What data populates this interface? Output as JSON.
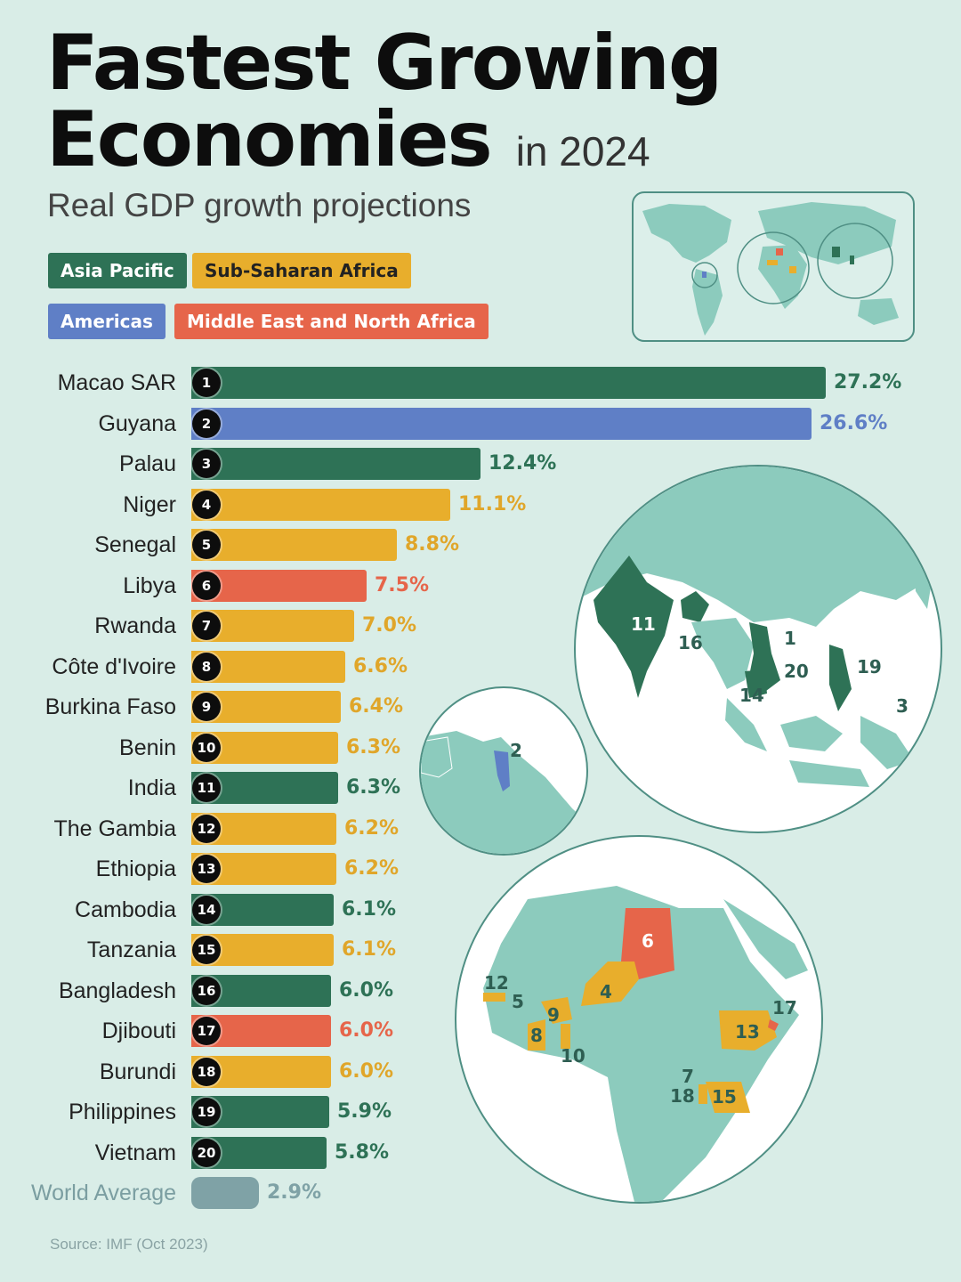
{
  "title": {
    "line1": "Fastest Growing",
    "line2": "Economies",
    "suffix": "in 2024",
    "subtitle": "Real GDP growth projections"
  },
  "legend": [
    {
      "label": "Asia Pacific",
      "color": "#2e7256"
    },
    {
      "label": "Sub-Saharan Africa",
      "color": "#e8ae2c"
    },
    {
      "label": "Americas",
      "color": "#5f7fc6"
    },
    {
      "label": "Middle East and North Africa",
      "color": "#e6654a"
    }
  ],
  "chart_data": {
    "type": "bar",
    "orientation": "horizontal",
    "categories": [
      "Macao SAR",
      "Guyana",
      "Palau",
      "Niger",
      "Senegal",
      "Libya",
      "Rwanda",
      "Côte d'Ivoire",
      "Burkina Faso",
      "Benin",
      "India",
      "The Gambia",
      "Ethiopia",
      "Cambodia",
      "Tanzania",
      "Bangladesh",
      "Djibouti",
      "Burundi",
      "Philippines",
      "Vietnam"
    ],
    "values": [
      27.2,
      26.6,
      12.4,
      11.1,
      8.8,
      7.5,
      7.0,
      6.6,
      6.4,
      6.3,
      6.3,
      6.2,
      6.2,
      6.1,
      6.1,
      6.0,
      6.0,
      6.0,
      5.9,
      5.8
    ],
    "value_labels": [
      "27.2%",
      "26.6%",
      "12.4%",
      "11.1%",
      "8.8%",
      "7.5%",
      "7.0%",
      "6.6%",
      "6.4%",
      "6.3%",
      "6.3%",
      "6.2%",
      "6.2%",
      "6.1%",
      "6.1%",
      "6.0%",
      "6.0%",
      "6.0%",
      "5.9%",
      "5.8%"
    ],
    "ranks": [
      "1",
      "2",
      "3",
      "4",
      "5",
      "6",
      "7",
      "8",
      "9",
      "10",
      "11",
      "12",
      "13",
      "14",
      "15",
      "16",
      "17",
      "18",
      "19",
      "20"
    ],
    "regions": [
      "Asia Pacific",
      "Americas",
      "Asia Pacific",
      "Sub-Saharan Africa",
      "Sub-Saharan Africa",
      "Middle East and North Africa",
      "Sub-Saharan Africa",
      "Sub-Saharan Africa",
      "Sub-Saharan Africa",
      "Sub-Saharan Africa",
      "Asia Pacific",
      "Sub-Saharan Africa",
      "Sub-Saharan Africa",
      "Asia Pacific",
      "Sub-Saharan Africa",
      "Asia Pacific",
      "Middle East and North Africa",
      "Sub-Saharan Africa",
      "Asia Pacific",
      "Asia Pacific"
    ],
    "reference": {
      "label": "World Average",
      "value": 2.9,
      "value_label": "2.9%",
      "color": "#7fa2a6"
    },
    "region_colors": {
      "Asia Pacific": "#2e7256",
      "Sub-Saharan Africa": "#e8ae2c",
      "Americas": "#5f7fc6",
      "Middle East and North Africa": "#e6654a"
    },
    "value_label_colors": {
      "Asia Pacific": "#2e7256",
      "Sub-Saharan Africa": "#e0a62a",
      "Americas": "#5f7fc6",
      "Middle East and North Africa": "#e6654a"
    }
  },
  "maps": {
    "asia_labels": [
      "11",
      "16",
      "1",
      "20",
      "19",
      "14",
      "3"
    ],
    "americas_labels": [
      "2"
    ],
    "africa_labels": [
      "6",
      "12",
      "5",
      "4",
      "9",
      "8",
      "10",
      "17",
      "13",
      "7",
      "18",
      "15"
    ]
  },
  "source": "Source: IMF (Oct 2023)"
}
